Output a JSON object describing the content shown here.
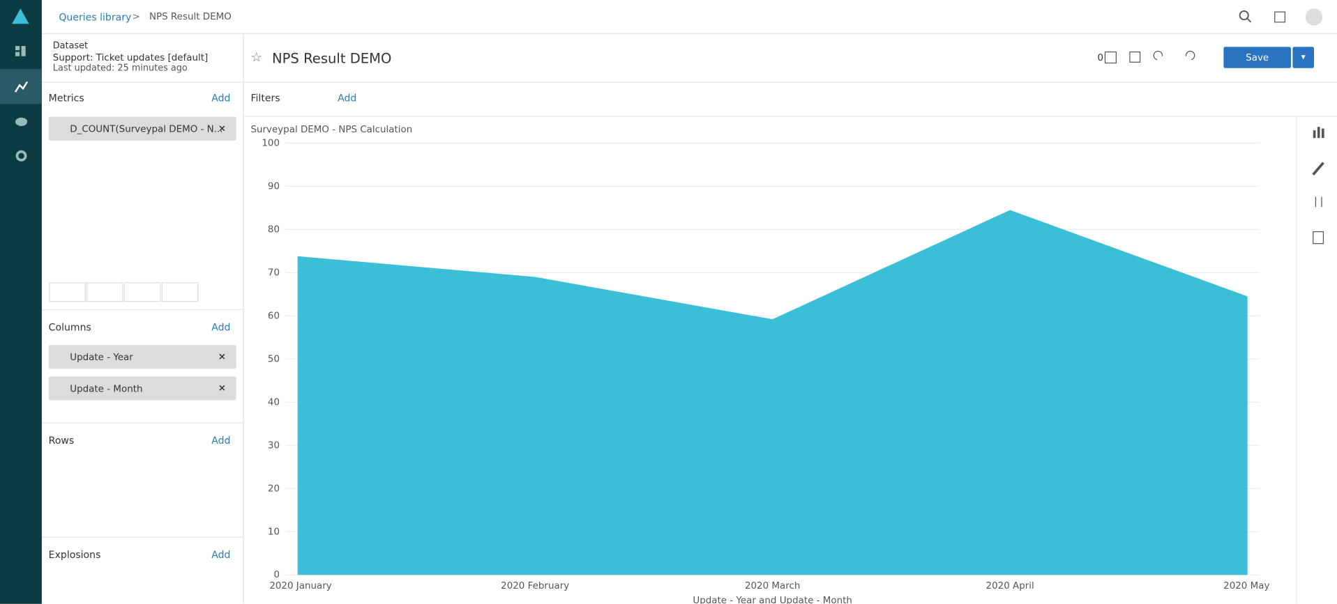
{
  "ui": {
    "breadcrumb": {
      "link": "Queries library",
      "separator": ">",
      "current": "NPS Result DEMO"
    },
    "dataset": {
      "label": "Dataset",
      "name": "Support: Ticket updates [default]",
      "updated": "Last updated: 25 minutes ago"
    },
    "query_title": "NPS Result DEMO",
    "widget_count": "0",
    "save": "Save",
    "filters": {
      "label": "Filters",
      "add": "Add"
    },
    "metrics": {
      "label": "Metrics",
      "add": "Add",
      "items": [
        "D_COUNT(Surveypal DEMO - N..."
      ]
    },
    "columns": {
      "label": "Columns",
      "add": "Add",
      "items": [
        "Update - Year",
        "Update - Month"
      ]
    },
    "rows": {
      "label": "Rows",
      "add": "Add"
    },
    "explosions": {
      "label": "Explosions",
      "add": "Add"
    }
  },
  "chart_data": {
    "type": "area",
    "title": "Surveypal DEMO - NPS Calculation",
    "x_label": "Update - Year and Update - Month",
    "categories": [
      "2020 January",
      "2020 February",
      "2020 March",
      "2020 April",
      "2020 May"
    ],
    "values": [
      73.8,
      69,
      59.2,
      84.5,
      64.5
    ],
    "color": "#3abfd6",
    "ylim": [
      0,
      100
    ],
    "yticks": [
      0,
      10,
      20,
      30,
      40,
      50,
      60,
      70,
      80,
      90,
      100
    ],
    "grid": true
  }
}
